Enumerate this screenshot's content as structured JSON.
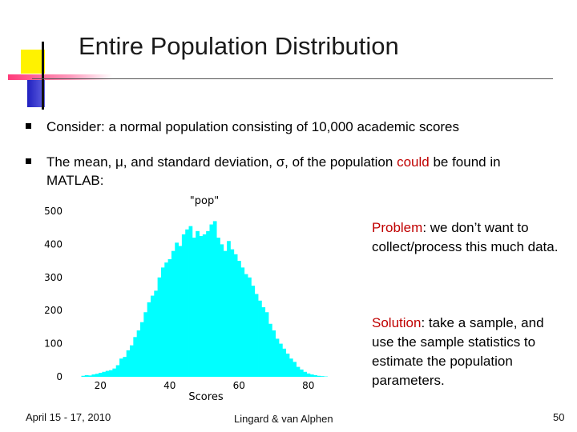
{
  "slide": {
    "title": "Entire Population Distribution",
    "bullets": [
      {
        "text": "Consider: a normal population consisting of 10,000 academic scores"
      },
      {
        "pre": "The mean, μ, and standard deviation, σ, of the population ",
        "highlight": "could",
        "post": " be found in MATLAB:"
      }
    ],
    "notes": [
      {
        "label": "Problem",
        "text": ": we don’t want to collect/process this much data."
      },
      {
        "label": "Solution",
        "text": ":  take a sample, and use the sample statistics to estimate the population parameters."
      }
    ],
    "footer": {
      "date": "April 15 - 17, 2010",
      "authors": "Lingard & van Alphen",
      "page": "50"
    }
  },
  "colors": {
    "bars": "#00ffff",
    "emphasis": "#c00000",
    "accent_yellow": "#fff200",
    "accent_pink": "#ff3b7a",
    "accent_blue": "#2020c0"
  },
  "chart_data": {
    "type": "bar",
    "title": "\"pop\"",
    "xlabel": "Scores",
    "ylabel": "",
    "xlim": [
      10,
      90
    ],
    "ylim": [
      0,
      500
    ],
    "xticks": [
      "20",
      "40",
      "60",
      "80"
    ],
    "yticks": [
      "0",
      "100",
      "200",
      "300",
      "400",
      "500"
    ],
    "x": [
      15,
      16,
      17,
      18,
      19,
      20,
      21,
      22,
      23,
      24,
      25,
      26,
      27,
      28,
      29,
      30,
      31,
      32,
      33,
      34,
      35,
      36,
      37,
      38,
      39,
      40,
      41,
      42,
      43,
      44,
      45,
      46,
      47,
      48,
      49,
      50,
      51,
      52,
      53,
      54,
      55,
      56,
      57,
      58,
      59,
      60,
      61,
      62,
      63,
      64,
      65,
      66,
      67,
      68,
      69,
      70,
      71,
      72,
      73,
      74,
      75,
      76,
      77,
      78,
      79,
      80,
      81,
      82,
      83,
      84,
      85
    ],
    "values": [
      3,
      5,
      4,
      7,
      9,
      12,
      15,
      18,
      20,
      25,
      35,
      55,
      60,
      80,
      95,
      120,
      140,
      165,
      195,
      225,
      245,
      260,
      300,
      330,
      345,
      355,
      380,
      405,
      395,
      430,
      445,
      455,
      420,
      440,
      425,
      430,
      440,
      460,
      470,
      420,
      400,
      380,
      410,
      385,
      370,
      350,
      330,
      310,
      300,
      275,
      250,
      230,
      210,
      195,
      160,
      140,
      115,
      100,
      85,
      70,
      55,
      45,
      30,
      22,
      15,
      10,
      7,
      5,
      3,
      2,
      1
    ]
  }
}
